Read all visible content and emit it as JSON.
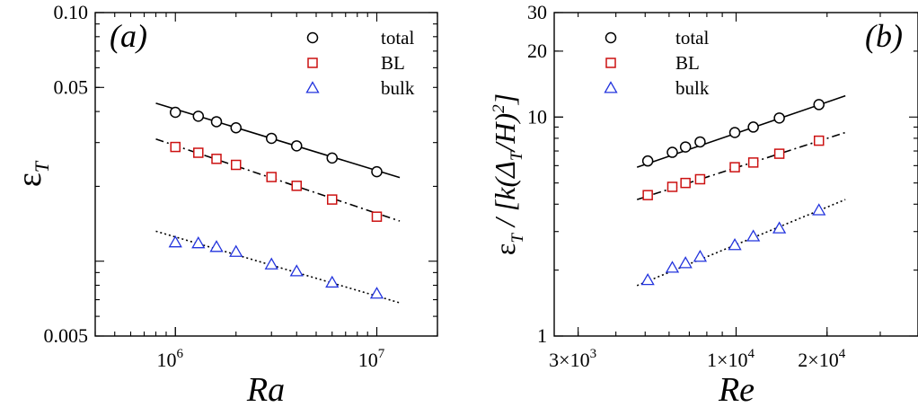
{
  "colors": {
    "total": "#000000",
    "BL": "#cc1111",
    "bulk": "#2233dd"
  },
  "chart_data": [
    {
      "type": "scatter",
      "panel_label": "(a)",
      "xlabel_main": "Ra",
      "ylabel_main": "ε",
      "ylabel_sub": "T",
      "x_scale": "log",
      "y_scale": "log",
      "xlim": [
        400000,
        20000000
      ],
      "ylim": [
        0.005,
        0.1
      ],
      "xticks": [
        {
          "value": 1000000,
          "base": "10",
          "exp": "6"
        },
        {
          "value": 10000000,
          "base": "10",
          "exp": "7"
        }
      ],
      "yticks": [
        {
          "value": 0.1,
          "label": "0.10"
        },
        {
          "value": 0.05,
          "label": "0.05"
        },
        {
          "value": 0.005,
          "label": "0.005"
        }
      ],
      "legend": [
        "total",
        "BL",
        "bulk"
      ],
      "legend_position": "top-right",
      "series": [
        {
          "name": "total",
          "marker": "circle",
          "x": [
            1000000,
            1300000,
            1600000,
            2000000,
            3000000,
            4000000,
            6000000,
            10000000
          ],
          "y": [
            0.0397,
            0.0383,
            0.0364,
            0.0344,
            0.0312,
            0.0291,
            0.026,
            0.0229
          ],
          "fit": {
            "style": "solid",
            "x": [
              800000,
              13000000
            ],
            "y": [
              0.0432,
              0.0217
            ]
          }
        },
        {
          "name": "BL",
          "marker": "square",
          "x": [
            1000000,
            1300000,
            1600000,
            2000000,
            3000000,
            4000000,
            6000000,
            10000000
          ],
          "y": [
            0.0288,
            0.0273,
            0.0258,
            0.0244,
            0.0218,
            0.0201,
            0.0177,
            0.0151
          ],
          "fit": {
            "style": "dashdot",
            "x": [
              800000,
              13000000
            ],
            "y": [
              0.031,
              0.0145
            ]
          }
        },
        {
          "name": "bulk",
          "marker": "triangle",
          "x": [
            1000000,
            1300000,
            1600000,
            2000000,
            3000000,
            4000000,
            6000000,
            10000000
          ],
          "y": [
            0.0119,
            0.0118,
            0.0114,
            0.0109,
            0.0097,
            0.0091,
            0.0082,
            0.0074
          ],
          "fit": {
            "style": "dotted",
            "x": [
              800000,
              13000000
            ],
            "y": [
              0.0132,
              0.0068
            ]
          }
        }
      ]
    },
    {
      "type": "scatter",
      "panel_label": "(b)",
      "xlabel_main": "Re",
      "ylabel_main": "ε",
      "ylabel_sub": "T",
      "ylabel_rest": " / [k(Δ",
      "ylabel_sub2": "T",
      "ylabel_rest2": "/H)",
      "ylabel_sup": "2",
      "ylabel_end": "]",
      "x_scale": "log",
      "y_scale": "log",
      "xlim": [
        2500,
        40000
      ],
      "ylim": [
        1,
        30
      ],
      "xticks": [
        {
          "value": 3000,
          "base": "3×10",
          "exp": "3"
        },
        {
          "value": 10000,
          "base": "1×10",
          "exp": "4"
        },
        {
          "value": 20000,
          "base": "2×10",
          "exp": "4"
        }
      ],
      "yticks": [
        {
          "value": 30,
          "label": "30"
        },
        {
          "value": 20,
          "label": "20"
        },
        {
          "value": 10,
          "label": "10"
        },
        {
          "value": 1,
          "label": "1"
        }
      ],
      "legend": [
        "total",
        "BL",
        "bulk"
      ],
      "legend_position": "top-left",
      "series": [
        {
          "name": "total",
          "marker": "circle",
          "x": [
            5100,
            6150,
            6800,
            7600,
            9900,
            11400,
            13900,
            18800
          ],
          "y": [
            6.3,
            6.9,
            7.3,
            7.7,
            8.5,
            9.0,
            9.9,
            11.4
          ],
          "fit": {
            "style": "solid",
            "x": [
              4700,
              23000
            ],
            "y": [
              5.9,
              12.5
            ]
          }
        },
        {
          "name": "BL",
          "marker": "square",
          "x": [
            5100,
            6150,
            6800,
            7600,
            9900,
            11400,
            13900,
            18800
          ],
          "y": [
            4.4,
            4.8,
            5.0,
            5.2,
            5.9,
            6.2,
            6.8,
            7.8
          ],
          "fit": {
            "style": "dashdot",
            "x": [
              4700,
              23000
            ],
            "y": [
              4.2,
              8.5
            ]
          }
        },
        {
          "name": "bulk",
          "marker": "triangle",
          "x": [
            5100,
            6150,
            6800,
            7600,
            9900,
            11400,
            13900,
            18800
          ],
          "y": [
            1.8,
            2.05,
            2.15,
            2.3,
            2.6,
            2.85,
            3.1,
            3.75
          ],
          "fit": {
            "style": "dotted",
            "x": [
              4700,
              23000
            ],
            "y": [
              1.7,
              4.2
            ]
          }
        }
      ]
    }
  ]
}
